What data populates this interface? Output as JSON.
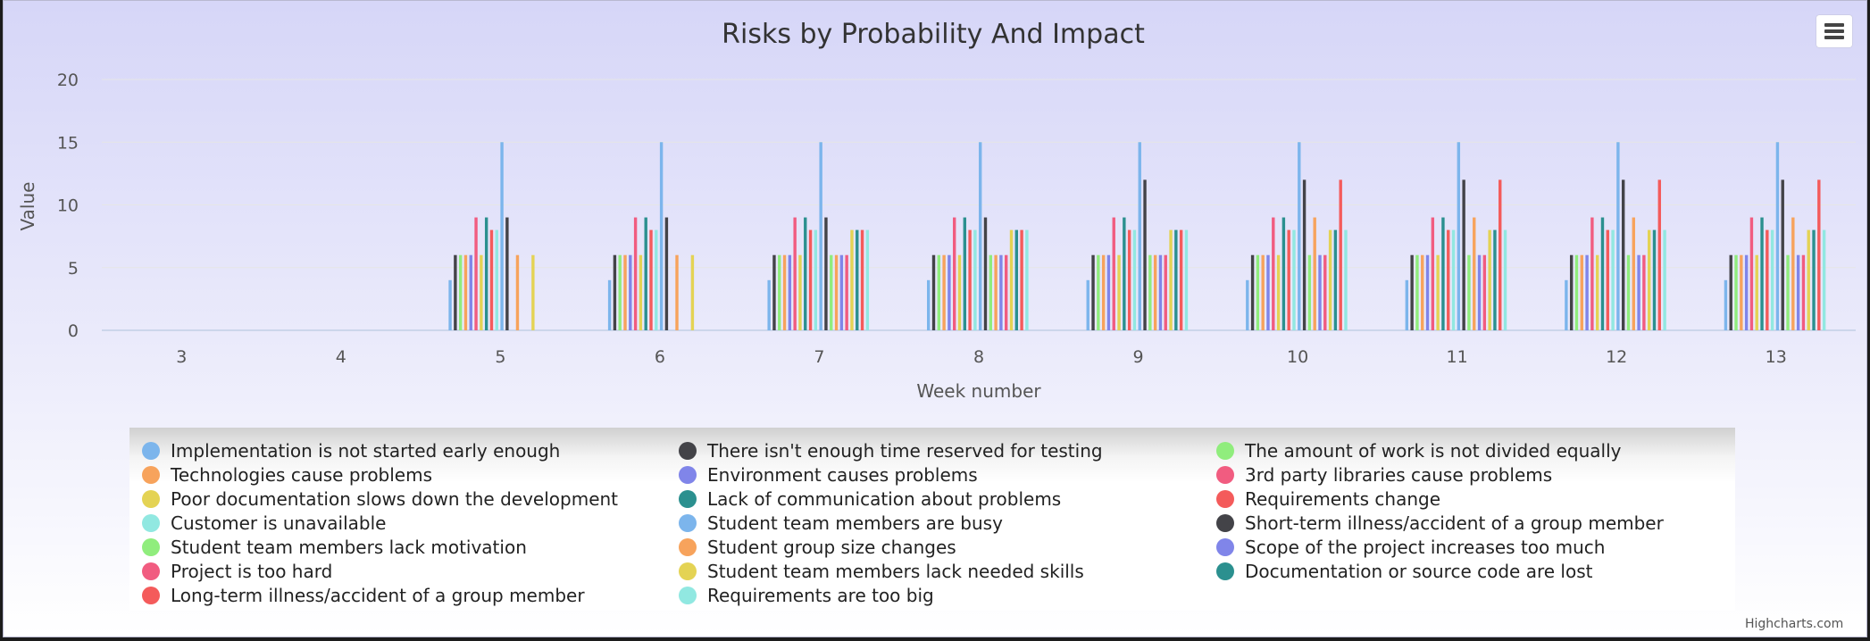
{
  "chart_data": {
    "type": "bar",
    "title": "Risks by Probability And Impact",
    "xlabel": "Week number",
    "ylabel": "Value",
    "ylim": [
      0,
      20
    ],
    "yticks": [
      0,
      5,
      10,
      15,
      20
    ],
    "grid": true,
    "legend_position": "bottom",
    "categories": [
      "3",
      "4",
      "5",
      "6",
      "7",
      "8",
      "9",
      "10",
      "11",
      "12",
      "13"
    ],
    "series": [
      {
        "name": "Implementation is not started early enough",
        "color": "#7cb5ec",
        "values": [
          0,
          0,
          4,
          4,
          4,
          4,
          4,
          4,
          4,
          4,
          4
        ]
      },
      {
        "name": "There isn't enough time reserved for testing",
        "color": "#434348",
        "values": [
          0,
          0,
          6,
          6,
          6,
          6,
          6,
          6,
          6,
          6,
          6
        ]
      },
      {
        "name": "The amount of work is not divided equally",
        "color": "#90ed7d",
        "values": [
          0,
          0,
          6,
          6,
          6,
          6,
          6,
          6,
          6,
          6,
          6
        ]
      },
      {
        "name": "Technologies cause problems",
        "color": "#f7a35c",
        "values": [
          0,
          0,
          6,
          6,
          6,
          6,
          6,
          6,
          6,
          6,
          6
        ]
      },
      {
        "name": "Environment causes problems",
        "color": "#8085e9",
        "values": [
          0,
          0,
          6,
          6,
          6,
          6,
          6,
          6,
          6,
          6,
          6
        ]
      },
      {
        "name": "3rd party libraries cause problems",
        "color": "#f15c80",
        "values": [
          0,
          0,
          9,
          9,
          9,
          9,
          9,
          9,
          9,
          9,
          9
        ]
      },
      {
        "name": "Poor documentation slows down the development",
        "color": "#e4d354",
        "values": [
          0,
          0,
          6,
          6,
          6,
          6,
          6,
          6,
          6,
          6,
          6
        ]
      },
      {
        "name": "Lack of communication about problems",
        "color": "#2b908f",
        "values": [
          0,
          0,
          9,
          9,
          9,
          9,
          9,
          9,
          9,
          9,
          9
        ]
      },
      {
        "name": "Requirements change",
        "color": "#f45b5b",
        "values": [
          0,
          0,
          8,
          8,
          8,
          8,
          8,
          8,
          8,
          8,
          8
        ]
      },
      {
        "name": "Customer is unavailable",
        "color": "#91e8e1",
        "values": [
          0,
          0,
          8,
          8,
          8,
          8,
          8,
          8,
          8,
          8,
          8
        ]
      },
      {
        "name": "Student team members are busy",
        "color": "#7cb5ec",
        "values": [
          0,
          0,
          15,
          15,
          15,
          15,
          15,
          15,
          15,
          15,
          15
        ]
      },
      {
        "name": "Short-term illness/accident of a group member",
        "color": "#434348",
        "values": [
          0,
          0,
          9,
          9,
          9,
          9,
          12,
          12,
          12,
          12,
          12
        ]
      },
      {
        "name": "Student team members lack motivation",
        "color": "#90ed7d",
        "values": [
          0,
          0,
          0,
          0,
          6,
          6,
          6,
          6,
          6,
          6,
          6
        ]
      },
      {
        "name": "Student group size changes",
        "color": "#f7a35c",
        "values": [
          0,
          0,
          6,
          6,
          6,
          6,
          6,
          9,
          9,
          9,
          9
        ]
      },
      {
        "name": "Scope of the project increases too much",
        "color": "#8085e9",
        "values": [
          0,
          0,
          0,
          0,
          6,
          6,
          6,
          6,
          6,
          6,
          6
        ]
      },
      {
        "name": "Project is too hard",
        "color": "#f15c80",
        "values": [
          0,
          0,
          0,
          0,
          6,
          6,
          6,
          6,
          6,
          6,
          6
        ]
      },
      {
        "name": "Student team members lack needed skills",
        "color": "#e4d354",
        "values": [
          0,
          0,
          6,
          6,
          8,
          8,
          8,
          8,
          8,
          8,
          8
        ]
      },
      {
        "name": "Documentation or source code are lost",
        "color": "#2b908f",
        "values": [
          0,
          0,
          0,
          0,
          8,
          8,
          8,
          8,
          8,
          8,
          8
        ]
      },
      {
        "name": "Long-term illness/accident of a group member",
        "color": "#f45b5b",
        "values": [
          0,
          0,
          0,
          0,
          8,
          8,
          8,
          12,
          12,
          12,
          12
        ]
      },
      {
        "name": "Requirements are too big",
        "color": "#91e8e1",
        "values": [
          0,
          0,
          0,
          0,
          8,
          8,
          8,
          8,
          8,
          8,
          8
        ]
      }
    ]
  },
  "menu": {
    "icon": "hamburger-menu-icon"
  },
  "credits": {
    "text": "Highcharts.com"
  }
}
